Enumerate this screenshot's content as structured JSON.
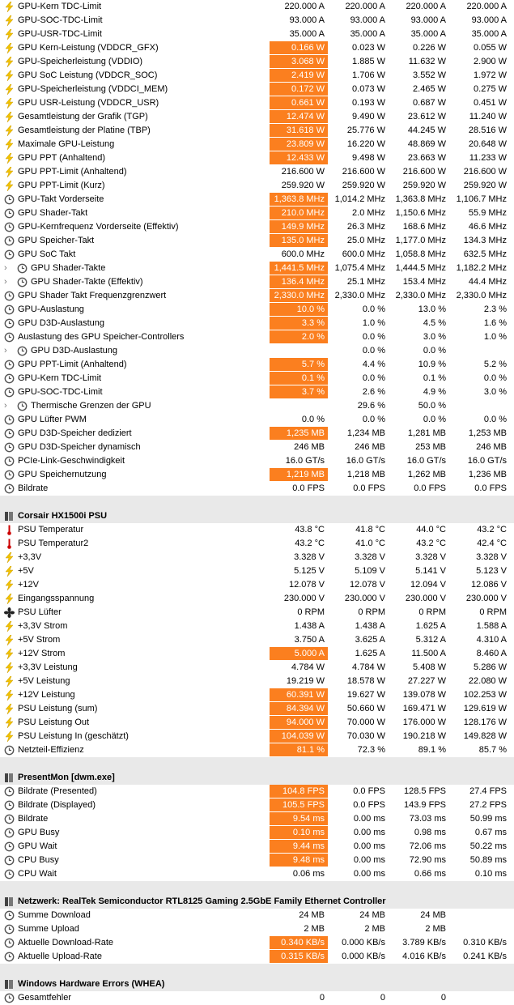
{
  "sections": [
    {
      "rows": [
        {
          "icon": "bolt",
          "label": "GPU-Kern TDC-Limit",
          "values": [
            "220.000 A",
            "220.000 A",
            "220.000 A",
            "220.000 A"
          ]
        },
        {
          "icon": "bolt",
          "label": "GPU-SOC-TDC-Limit",
          "values": [
            "93.000 A",
            "93.000 A",
            "93.000 A",
            "93.000 A"
          ]
        },
        {
          "icon": "bolt",
          "label": "GPU-USR-TDC-Limit",
          "values": [
            "35.000 A",
            "35.000 A",
            "35.000 A",
            "35.000 A"
          ]
        },
        {
          "icon": "bolt",
          "label": "GPU Kern-Leistung (VDDCR_GFX)",
          "values": [
            "0.166 W",
            "0.023 W",
            "0.226 W",
            "0.055 W"
          ],
          "highlight": true
        },
        {
          "icon": "bolt",
          "label": "GPU-Speicherleistung (VDDIO)",
          "values": [
            "3.068 W",
            "1.885 W",
            "11.632 W",
            "2.900 W"
          ],
          "highlight": true
        },
        {
          "icon": "bolt",
          "label": "GPU SoC Leistung (VDDCR_SOC)",
          "values": [
            "2.419 W",
            "1.706 W",
            "3.552 W",
            "1.972 W"
          ],
          "highlight": true
        },
        {
          "icon": "bolt",
          "label": "GPU-Speicherleistung (VDDCI_MEM)",
          "values": [
            "0.172 W",
            "0.073 W",
            "2.465 W",
            "0.275 W"
          ],
          "highlight": true
        },
        {
          "icon": "bolt",
          "label": "GPU USR-Leistung (VDDCR_USR)",
          "values": [
            "0.661 W",
            "0.193 W",
            "0.687 W",
            "0.451 W"
          ],
          "highlight": true
        },
        {
          "icon": "bolt",
          "label": "Gesamtleistung der Grafik (TGP)",
          "values": [
            "12.474 W",
            "9.490 W",
            "23.612 W",
            "11.240 W"
          ],
          "highlight": true
        },
        {
          "icon": "bolt",
          "label": "Gesamtleistung der Platine (TBP)",
          "values": [
            "31.618 W",
            "25.776 W",
            "44.245 W",
            "28.516 W"
          ],
          "highlight": true
        },
        {
          "icon": "bolt",
          "label": "Maximale GPU-Leistung",
          "values": [
            "23.809 W",
            "16.220 W",
            "48.869 W",
            "20.648 W"
          ],
          "highlight": true
        },
        {
          "icon": "bolt",
          "label": "GPU PPT (Anhaltend)",
          "values": [
            "12.433 W",
            "9.498 W",
            "23.663 W",
            "11.233 W"
          ],
          "highlight": true
        },
        {
          "icon": "bolt",
          "label": "GPU PPT-Limit (Anhaltend)",
          "values": [
            "216.600 W",
            "216.600 W",
            "216.600 W",
            "216.600 W"
          ]
        },
        {
          "icon": "bolt",
          "label": "GPU PPT-Limit (Kurz)",
          "values": [
            "259.920 W",
            "259.920 W",
            "259.920 W",
            "259.920 W"
          ]
        },
        {
          "icon": "clock",
          "label": "GPU-Takt Vorderseite",
          "values": [
            "1,363.8 MHz",
            "1,014.2 MHz",
            "1,363.8 MHz",
            "1,106.7 MHz"
          ],
          "highlight": true
        },
        {
          "icon": "clock",
          "label": "GPU Shader-Takt",
          "values": [
            "210.0 MHz",
            "2.0 MHz",
            "1,150.6 MHz",
            "55.9 MHz"
          ],
          "highlight": true
        },
        {
          "icon": "clock",
          "label": "GPU-Kernfrequenz Vorderseite (Effektiv)",
          "values": [
            "149.9 MHz",
            "26.3 MHz",
            "168.6 MHz",
            "46.6 MHz"
          ],
          "highlight": true
        },
        {
          "icon": "clock",
          "label": "GPU Speicher-Takt",
          "values": [
            "135.0 MHz",
            "25.0 MHz",
            "1,177.0 MHz",
            "134.3 MHz"
          ],
          "highlight": true
        },
        {
          "icon": "clock",
          "label": "GPU SoC Takt",
          "values": [
            "600.0 MHz",
            "600.0 MHz",
            "1,058.8 MHz",
            "632.5 MHz"
          ]
        },
        {
          "icon": "clock",
          "label": "GPU Shader-Takte",
          "values": [
            "1,441.5 MHz",
            "1,075.4 MHz",
            "1,444.5 MHz",
            "1,182.2 MHz"
          ],
          "highlight": true,
          "expandable": true
        },
        {
          "icon": "clock",
          "label": "GPU Shader-Takte (Effektiv)",
          "values": [
            "136.4 MHz",
            "25.1 MHz",
            "153.4 MHz",
            "44.4 MHz"
          ],
          "highlight": true,
          "expandable": true
        },
        {
          "icon": "clock",
          "label": "GPU Shader Takt Frequenzgrenzwert",
          "values": [
            "2,330.0 MHz",
            "2,330.0 MHz",
            "2,330.0 MHz",
            "2,330.0 MHz"
          ],
          "highlight": true
        },
        {
          "icon": "clock",
          "label": "GPU-Auslastung",
          "values": [
            "10.0 %",
            "0.0 %",
            "13.0 %",
            "2.3 %"
          ],
          "highlight": true
        },
        {
          "icon": "clock",
          "label": "GPU D3D-Auslastung",
          "values": [
            "3.3 %",
            "1.0 %",
            "4.5 %",
            "1.6 %"
          ],
          "highlight": true
        },
        {
          "icon": "clock",
          "label": "Auslastung des GPU Speicher-Controllers",
          "values": [
            "2.0 %",
            "0.0 %",
            "3.0 %",
            "1.0 %"
          ],
          "highlight": true
        },
        {
          "icon": "clock",
          "label": "GPU D3D-Auslastung",
          "values": [
            null,
            "0.0 %",
            "0.0 %",
            null
          ],
          "expandable": true
        },
        {
          "icon": "clock",
          "label": "GPU PPT-Limit (Anhaltend)",
          "values": [
            "5.7 %",
            "4.4 %",
            "10.9 %",
            "5.2 %"
          ],
          "highlight": true
        },
        {
          "icon": "clock",
          "label": "GPU-Kern TDC-Limit",
          "values": [
            "0.1 %",
            "0.0 %",
            "0.1 %",
            "0.0 %"
          ],
          "highlight": true
        },
        {
          "icon": "clock",
          "label": "GPU-SOC-TDC-Limit",
          "values": [
            "3.7 %",
            "2.6 %",
            "4.9 %",
            "3.0 %"
          ],
          "highlight": true
        },
        {
          "icon": "clock",
          "label": "Thermische Grenzen der GPU",
          "values": [
            null,
            "29.6 %",
            "50.0 %",
            null
          ],
          "expandable": true
        },
        {
          "icon": "clock",
          "label": "GPU Lüfter PWM",
          "values": [
            "0.0 %",
            "0.0 %",
            "0.0 %",
            "0.0 %"
          ]
        },
        {
          "icon": "clock",
          "label": "GPU D3D-Speicher dediziert",
          "values": [
            "1,235 MB",
            "1,234 MB",
            "1,281 MB",
            "1,253 MB"
          ],
          "highlight": true
        },
        {
          "icon": "clock",
          "label": "GPU D3D-Speicher dynamisch",
          "values": [
            "246 MB",
            "246 MB",
            "253 MB",
            "246 MB"
          ]
        },
        {
          "icon": "clock",
          "label": "PCIe-Link-Geschwindigkeit",
          "values": [
            "16.0 GT/s",
            "16.0 GT/s",
            "16.0 GT/s",
            "16.0 GT/s"
          ]
        },
        {
          "icon": "clock",
          "label": "GPU Speichernutzung",
          "values": [
            "1,219 MB",
            "1,218 MB",
            "1,262 MB",
            "1,236 MB"
          ],
          "highlight": true
        },
        {
          "icon": "clock",
          "label": "Bildrate",
          "values": [
            "0.0 FPS",
            "0.0 FPS",
            "0.0 FPS",
            "0.0 FPS"
          ]
        }
      ]
    },
    {
      "title": "Corsair HX1500i PSU",
      "rows": [
        {
          "icon": "thermo",
          "label": "PSU Temperatur",
          "values": [
            "43.8 °C",
            "41.8 °C",
            "44.0 °C",
            "43.2 °C"
          ]
        },
        {
          "icon": "thermo",
          "label": "PSU Temperatur2",
          "values": [
            "43.2 °C",
            "41.0 °C",
            "43.2 °C",
            "42.4 °C"
          ]
        },
        {
          "icon": "bolt",
          "label": "+3,3V",
          "values": [
            "3.328 V",
            "3.328 V",
            "3.328 V",
            "3.328 V"
          ]
        },
        {
          "icon": "bolt",
          "label": "+5V",
          "values": [
            "5.125 V",
            "5.109 V",
            "5.141 V",
            "5.123 V"
          ]
        },
        {
          "icon": "bolt",
          "label": "+12V",
          "values": [
            "12.078 V",
            "12.078 V",
            "12.094 V",
            "12.086 V"
          ]
        },
        {
          "icon": "bolt",
          "label": "Eingangsspannung",
          "values": [
            "230.000 V",
            "230.000 V",
            "230.000 V",
            "230.000 V"
          ]
        },
        {
          "icon": "fan",
          "label": "PSU Lüfter",
          "values": [
            "0 RPM",
            "0 RPM",
            "0 RPM",
            "0 RPM"
          ]
        },
        {
          "icon": "bolt",
          "label": "+3,3V Strom",
          "values": [
            "1.438 A",
            "1.438 A",
            "1.625 A",
            "1.588 A"
          ]
        },
        {
          "icon": "bolt",
          "label": "+5V Strom",
          "values": [
            "3.750 A",
            "3.625 A",
            "5.312 A",
            "4.310 A"
          ]
        },
        {
          "icon": "bolt",
          "label": "+12V Strom",
          "values": [
            "5.000 A",
            "1.625 A",
            "11.500 A",
            "8.460 A"
          ],
          "highlight": true
        },
        {
          "icon": "bolt",
          "label": "+3,3V Leistung",
          "values": [
            "4.784 W",
            "4.784 W",
            "5.408 W",
            "5.286 W"
          ]
        },
        {
          "icon": "bolt",
          "label": "+5V Leistung",
          "values": [
            "19.219 W",
            "18.578 W",
            "27.227 W",
            "22.080 W"
          ]
        },
        {
          "icon": "bolt",
          "label": "+12V Leistung",
          "values": [
            "60.391 W",
            "19.627 W",
            "139.078 W",
            "102.253 W"
          ],
          "highlight": true
        },
        {
          "icon": "bolt",
          "label": "PSU Leistung (sum)",
          "values": [
            "84.394 W",
            "50.660 W",
            "169.471 W",
            "129.619 W"
          ],
          "highlight": true
        },
        {
          "icon": "bolt",
          "label": "PSU Leistung Out",
          "values": [
            "94.000 W",
            "70.000 W",
            "176.000 W",
            "128.176 W"
          ],
          "highlight": true
        },
        {
          "icon": "bolt",
          "label": "PSU Leistung In (geschätzt)",
          "values": [
            "104.039 W",
            "70.030 W",
            "190.218 W",
            "149.828 W"
          ],
          "highlight": true
        },
        {
          "icon": "clock",
          "label": "Netzteil-Effizienz",
          "values": [
            "81.1 %",
            "72.3 %",
            "89.1 %",
            "85.7 %"
          ],
          "highlight": true
        }
      ]
    },
    {
      "title": "PresentMon [dwm.exe]",
      "rows": [
        {
          "icon": "clock",
          "label": "Bildrate (Presented)",
          "values": [
            "104.8 FPS",
            "0.0 FPS",
            "128.5 FPS",
            "27.4 FPS"
          ],
          "highlight": true
        },
        {
          "icon": "clock",
          "label": "Bildrate (Displayed)",
          "values": [
            "105.5 FPS",
            "0.0 FPS",
            "143.9 FPS",
            "27.2 FPS"
          ],
          "highlight": true
        },
        {
          "icon": "clock",
          "label": "Bildrate",
          "values": [
            "9.54 ms",
            "0.00 ms",
            "73.03 ms",
            "50.99 ms"
          ],
          "highlight": true
        },
        {
          "icon": "clock",
          "label": "GPU Busy",
          "values": [
            "0.10 ms",
            "0.00 ms",
            "0.98 ms",
            "0.67 ms"
          ],
          "highlight": true
        },
        {
          "icon": "clock",
          "label": "GPU Wait",
          "values": [
            "9.44 ms",
            "0.00 ms",
            "72.06 ms",
            "50.22 ms"
          ],
          "highlight": true
        },
        {
          "icon": "clock",
          "label": "CPU Busy",
          "values": [
            "9.48 ms",
            "0.00 ms",
            "72.90 ms",
            "50.89 ms"
          ],
          "highlight": true
        },
        {
          "icon": "clock",
          "label": "CPU Wait",
          "values": [
            "0.06 ms",
            "0.00 ms",
            "0.66 ms",
            "0.10 ms"
          ]
        }
      ]
    },
    {
      "title": "Netzwerk: RealTek Semiconductor RTL8125 Gaming 2.5GbE Family Ethernet Controller",
      "rows": [
        {
          "icon": "clock",
          "label": "Summe Download",
          "values": [
            "24 MB",
            "24 MB",
            "24 MB",
            null
          ]
        },
        {
          "icon": "clock",
          "label": "Summe Upload",
          "values": [
            "2 MB",
            "2 MB",
            "2 MB",
            null
          ]
        },
        {
          "icon": "clock",
          "label": "Aktuelle Download-Rate",
          "values": [
            "0.340 KB/s",
            "0.000 KB/s",
            "3.789 KB/s",
            "0.310 KB/s"
          ],
          "highlight": true
        },
        {
          "icon": "clock",
          "label": "Aktuelle Upload-Rate",
          "values": [
            "0.315 KB/s",
            "0.000 KB/s",
            "4.016 KB/s",
            "0.241 KB/s"
          ],
          "highlight": true
        }
      ]
    },
    {
      "title": "Windows Hardware Errors (WHEA)",
      "rows": [
        {
          "icon": "clock",
          "label": "Gesamtfehler",
          "values": [
            "0",
            "0",
            "0",
            null
          ]
        }
      ]
    }
  ]
}
